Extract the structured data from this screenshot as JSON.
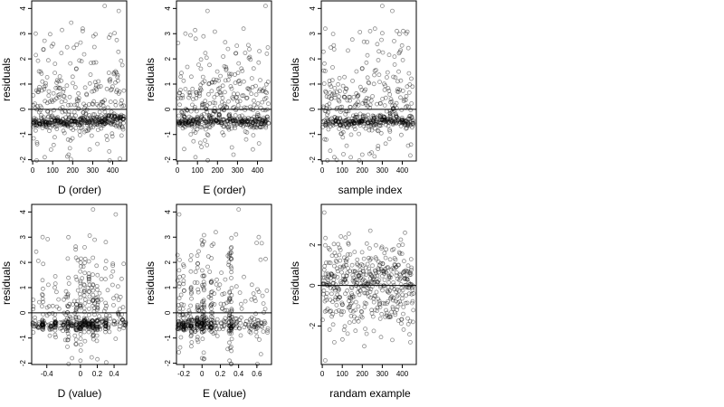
{
  "chart_data": [
    {
      "id": "p1",
      "type": "scatter",
      "xlabel": "D (order)",
      "ylabel": "residuals",
      "xlim": [
        -5,
        470
      ],
      "ylim": [
        -2.05,
        4.3
      ],
      "xticks": [
        0,
        100,
        200,
        300,
        400
      ],
      "yticks": [
        -2,
        -1,
        0,
        1,
        2,
        3,
        4
      ],
      "hline": 0,
      "grid": false,
      "cluster_points": [
        {
          "x": 5,
          "y": -0.55
        },
        {
          "x": 20,
          "y": -0.6
        },
        {
          "x": 35,
          "y": -0.58
        },
        {
          "x": 50,
          "y": -0.55
        },
        {
          "x": 65,
          "y": -0.6
        },
        {
          "x": 80,
          "y": -0.5
        },
        {
          "x": 110,
          "y": -0.45
        },
        {
          "x": 125,
          "y": -0.42
        },
        {
          "x": 140,
          "y": -0.5
        },
        {
          "x": 155,
          "y": -0.55
        },
        {
          "x": 175,
          "y": -0.62
        },
        {
          "x": 195,
          "y": -0.5
        },
        {
          "x": 215,
          "y": -0.48
        },
        {
          "x": 240,
          "y": -0.55
        },
        {
          "x": 270,
          "y": -0.5
        },
        {
          "x": 300,
          "y": -0.45
        },
        {
          "x": 320,
          "y": -0.6
        },
        {
          "x": 340,
          "y": -0.45
        },
        {
          "x": 360,
          "y": -0.42
        },
        {
          "x": 380,
          "y": -0.3
        },
        {
          "x": 395,
          "y": -0.25
        },
        {
          "x": 410,
          "y": -0.28
        },
        {
          "x": 425,
          "y": -0.32
        },
        {
          "x": 440,
          "y": -0.35
        },
        {
          "x": 455,
          "y": -0.38
        }
      ],
      "outliers": [
        {
          "x": 15,
          "y": 3.0
        },
        {
          "x": 430,
          "y": 3.9
        },
        {
          "x": 360,
          "y": 4.1
        },
        {
          "x": 95,
          "y": 2.5
        },
        {
          "x": 250,
          "y": 3.2
        },
        {
          "x": 180,
          "y": -1.8
        },
        {
          "x": 60,
          "y": -1.9
        }
      ]
    },
    {
      "id": "p2",
      "type": "scatter",
      "xlabel": "E (order)",
      "ylabel": "residuals",
      "xlim": [
        -5,
        470
      ],
      "ylim": [
        -2.05,
        4.3
      ],
      "xticks": [
        0,
        100,
        200,
        300,
        400
      ],
      "yticks": [
        -2,
        -1,
        0,
        1,
        2,
        3,
        4
      ],
      "hline": 0,
      "grid": false,
      "cluster_points": [
        {
          "x": 10,
          "y": -0.55
        },
        {
          "x": 25,
          "y": -0.6
        },
        {
          "x": 40,
          "y": -0.55
        },
        {
          "x": 60,
          "y": -0.5
        },
        {
          "x": 80,
          "y": -0.45
        },
        {
          "x": 100,
          "y": -0.35
        },
        {
          "x": 120,
          "y": -0.3
        },
        {
          "x": 145,
          "y": -0.05
        },
        {
          "x": 160,
          "y": -0.3
        },
        {
          "x": 185,
          "y": -0.1
        },
        {
          "x": 210,
          "y": -0.2
        },
        {
          "x": 230,
          "y": 0.0
        },
        {
          "x": 260,
          "y": -0.3
        },
        {
          "x": 290,
          "y": -0.45
        },
        {
          "x": 320,
          "y": -0.5
        },
        {
          "x": 350,
          "y": -0.5
        },
        {
          "x": 380,
          "y": -0.45
        },
        {
          "x": 410,
          "y": -0.4
        },
        {
          "x": 440,
          "y": -0.5
        }
      ],
      "outliers": [
        {
          "x": 150,
          "y": 3.9
        },
        {
          "x": 440,
          "y": 4.1
        },
        {
          "x": 40,
          "y": 3.0
        },
        {
          "x": 330,
          "y": 3.2
        },
        {
          "x": 280,
          "y": -1.8
        },
        {
          "x": 90,
          "y": -1.9
        }
      ]
    },
    {
      "id": "p3",
      "type": "scatter",
      "xlabel": "sample index",
      "ylabel": "residuals",
      "xlim": [
        -5,
        470
      ],
      "ylim": [
        -2.05,
        4.3
      ],
      "xticks": [
        0,
        100,
        200,
        300,
        400
      ],
      "yticks": [
        -2,
        -1,
        0,
        1,
        2,
        3,
        4
      ],
      "hline": 0,
      "grid": false,
      "cluster_points": [
        {
          "x": 20,
          "y": -0.55
        },
        {
          "x": 70,
          "y": -0.45
        },
        {
          "x": 90,
          "y": -0.6
        },
        {
          "x": 120,
          "y": -0.5
        },
        {
          "x": 160,
          "y": -0.55
        },
        {
          "x": 185,
          "y": -0.5
        },
        {
          "x": 200,
          "y": -0.45
        },
        {
          "x": 230,
          "y": -0.55
        },
        {
          "x": 260,
          "y": -0.35
        },
        {
          "x": 290,
          "y": -0.3
        },
        {
          "x": 310,
          "y": -0.35
        },
        {
          "x": 340,
          "y": -0.2
        },
        {
          "x": 355,
          "y": 0.0
        },
        {
          "x": 370,
          "y": -0.3
        },
        {
          "x": 400,
          "y": -0.4
        },
        {
          "x": 430,
          "y": -0.6
        }
      ],
      "outliers": [
        {
          "x": 350,
          "y": 3.9
        },
        {
          "x": 300,
          "y": 4.1
        },
        {
          "x": 15,
          "y": 3.2
        },
        {
          "x": 420,
          "y": 3.0
        },
        {
          "x": 200,
          "y": -1.8
        },
        {
          "x": 60,
          "y": -1.9
        }
      ]
    },
    {
      "id": "p4",
      "type": "scatter",
      "xlabel": "D (value)",
      "ylabel": "residuals",
      "xlim": [
        -0.58,
        0.55
      ],
      "ylim": [
        -2.05,
        4.3
      ],
      "xticks": [
        -0.4,
        0.0,
        0.2,
        0.4
      ],
      "yticks": [
        -2,
        -1,
        0,
        1,
        2,
        3,
        4
      ],
      "hline": 0,
      "grid": false,
      "columns": [
        -0.45,
        -0.3,
        -0.15,
        -0.05,
        0.0,
        0.05,
        0.1,
        0.15,
        0.2,
        0.3
      ],
      "cluster_points": [
        {
          "x": -0.5,
          "y": -0.55
        },
        {
          "x": -0.45,
          "y": -0.6
        },
        {
          "x": -0.35,
          "y": -0.55
        },
        {
          "x": -0.2,
          "y": -0.45
        },
        {
          "x": -0.1,
          "y": -0.5
        },
        {
          "x": 0.0,
          "y": -0.6
        },
        {
          "x": 0.05,
          "y": -0.3
        },
        {
          "x": 0.1,
          "y": -0.45
        },
        {
          "x": 0.15,
          "y": -0.35
        },
        {
          "x": 0.2,
          "y": -0.3
        },
        {
          "x": 0.25,
          "y": -0.3
        },
        {
          "x": 0.3,
          "y": -0.35
        },
        {
          "x": 0.45,
          "y": -0.05
        },
        {
          "x": 0.5,
          "y": -0.3
        }
      ],
      "outliers": [
        {
          "x": -0.45,
          "y": 3.0
        },
        {
          "x": 0.15,
          "y": 4.1
        },
        {
          "x": 0.42,
          "y": 3.9
        },
        {
          "x": 0.05,
          "y": 2.6
        },
        {
          "x": -0.1,
          "y": -1.8
        },
        {
          "x": 0.0,
          "y": -1.9
        }
      ]
    },
    {
      "id": "p5",
      "type": "scatter",
      "xlabel": "E (value)",
      "ylabel": "residuals",
      "xlim": [
        -0.28,
        0.76
      ],
      "ylim": [
        -2.05,
        4.3
      ],
      "xticks": [
        -0.2,
        0.0,
        0.2,
        0.4,
        0.6
      ],
      "yticks": [
        -2,
        -1,
        0,
        1,
        2,
        3,
        4
      ],
      "hline": 0,
      "grid": false,
      "columns": [
        -0.25,
        -0.2,
        -0.12,
        -0.05,
        0.0,
        0.02,
        0.1,
        0.3,
        0.32
      ],
      "cluster_points": [
        {
          "x": -0.25,
          "y": -0.5
        },
        {
          "x": -0.22,
          "y": -0.45
        },
        {
          "x": -0.15,
          "y": -0.35
        },
        {
          "x": -0.1,
          "y": -0.3
        },
        {
          "x": -0.05,
          "y": -0.25
        },
        {
          "x": 0.0,
          "y": -0.45
        },
        {
          "x": 0.02,
          "y": -0.35
        },
        {
          "x": 0.05,
          "y": -0.3
        },
        {
          "x": 0.3,
          "y": -0.5
        },
        {
          "x": 0.32,
          "y": -0.6
        },
        {
          "x": 0.6,
          "y": -0.55
        }
      ],
      "outliers": [
        {
          "x": -0.25,
          "y": 3.9
        },
        {
          "x": 0.4,
          "y": 4.1
        },
        {
          "x": 0.15,
          "y": 3.2
        },
        {
          "x": 0.62,
          "y": 3.0
        },
        {
          "x": 0.0,
          "y": -1.8
        },
        {
          "x": 0.3,
          "y": -1.9
        }
      ]
    },
    {
      "id": "p6",
      "type": "scatter",
      "xlabel": "randam example",
      "ylabel": "residuals",
      "xlim": [
        -5,
        470
      ],
      "ylim": [
        -3.9,
        4.0
      ],
      "xticks": [
        0,
        100,
        200,
        300,
        400
      ],
      "yticks": [
        -2,
        0,
        2
      ],
      "hline": 0,
      "grid": false,
      "cluster_points": [],
      "outliers": [
        {
          "x": 10,
          "y": 3.6
        },
        {
          "x": 15,
          "y": -3.7
        },
        {
          "x": 60,
          "y": -2.8
        },
        {
          "x": 210,
          "y": -3.0
        },
        {
          "x": 240,
          "y": 2.7
        },
        {
          "x": 440,
          "y": -2.8
        }
      ]
    }
  ]
}
